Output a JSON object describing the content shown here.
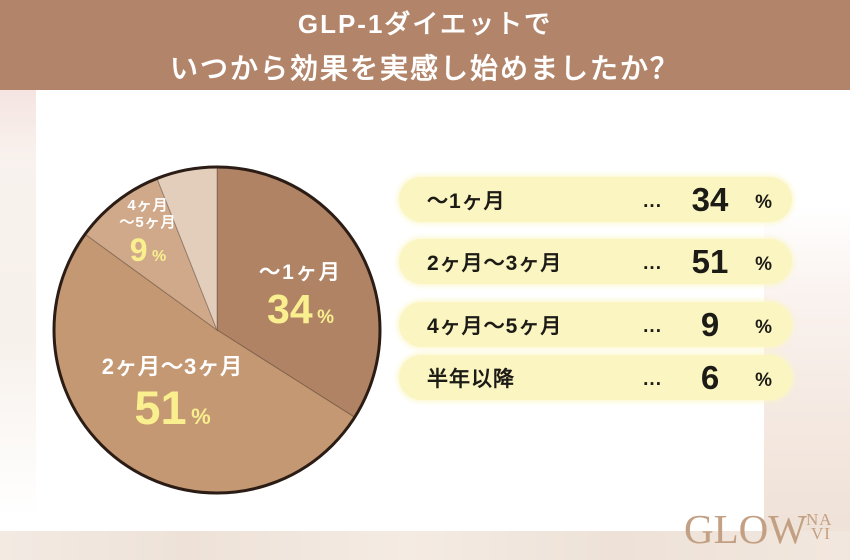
{
  "header": {
    "line1": "GLP-1ダイエットで",
    "line2": "いつから効果を実感し始めましたか？"
  },
  "chart_data": {
    "type": "pie",
    "title": "GLP-1ダイエットで いつから効果を実感し始めましたか？",
    "start_angle": "12-oclock",
    "direction": "clockwise",
    "unit": "%",
    "segments": [
      {
        "label": "〜1ヶ月",
        "value": 34,
        "color": "#b08365"
      },
      {
        "label": "2ヶ月〜3ヶ月",
        "value": 51,
        "color": "#c49873"
      },
      {
        "label": "4ヶ月〜5ヶ月",
        "value": 9,
        "color": "#cfa98a"
      },
      {
        "label": "半年以降",
        "value": 6,
        "color": "#e2ceba"
      }
    ],
    "outline_color": "#2b1d15",
    "value_label_color": "#f9ef8e",
    "name_label_color": "#ffffff"
  },
  "pie_display": {
    "seg3_name_line1": "4ヶ月",
    "seg3_name_line2": "〜5ヶ月"
  },
  "legend": {
    "dots": "...",
    "unit": "%",
    "pill_color": "#fbf5c2"
  },
  "logo": {
    "main": "GLOW",
    "stack_top": "NA",
    "stack_bottom": "VI"
  }
}
